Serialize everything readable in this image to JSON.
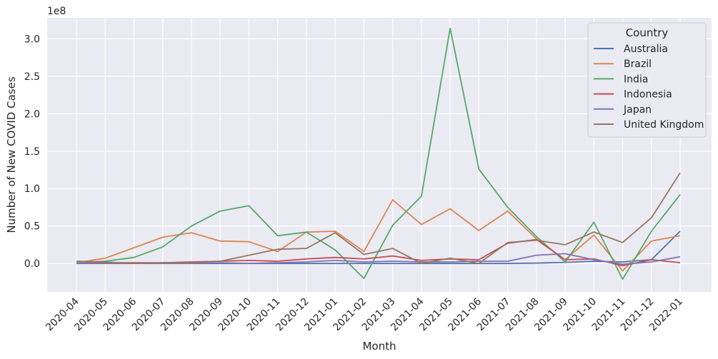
{
  "chart_data": {
    "type": "line",
    "xlabel": "Month",
    "ylabel": "Number of New COVID Cases",
    "y_scale_label": "1e8",
    "ylim": [
      -0.38,
      3.28
    ],
    "y_ticks": [
      0.0,
      0.5,
      1.0,
      1.5,
      2.0,
      2.5,
      3.0
    ],
    "y_tick_labels": [
      "0.0",
      "0.5",
      "1.0",
      "1.5",
      "2.0",
      "2.5",
      "3.0"
    ],
    "grid": true,
    "legend": {
      "title": "Country",
      "placement": "top-right"
    },
    "categories": [
      "2020-04",
      "2020-05",
      "2020-06",
      "2020-07",
      "2020-08",
      "2020-09",
      "2020-10",
      "2020-11",
      "2020-12",
      "2021-01",
      "2021-02",
      "2021-03",
      "2021-04",
      "2021-05",
      "2021-06",
      "2021-07",
      "2021-08",
      "2021-09",
      "2021-10",
      "2021-11",
      "2021-12",
      "2022-01"
    ],
    "series": [
      {
        "name": "Australia",
        "color": "#4c72b0",
        "values": [
          0.005,
          0.0,
          0.0,
          0.0,
          0.0,
          0.0,
          0.0,
          0.0,
          0.0,
          0.0,
          0.0,
          0.0,
          0.0,
          0.0,
          0.0,
          0.0,
          0.005,
          0.015,
          0.03,
          0.02,
          0.05,
          0.43
        ]
      },
      {
        "name": "Brazil",
        "color": "#dd8452",
        "values": [
          0.01,
          0.07,
          0.21,
          0.35,
          0.41,
          0.3,
          0.29,
          0.16,
          0.42,
          0.43,
          0.16,
          0.85,
          0.52,
          0.73,
          0.44,
          0.7,
          0.33,
          0.05,
          0.38,
          -0.1,
          0.3,
          0.37
        ]
      },
      {
        "name": "India",
        "color": "#55a868",
        "values": [
          0.01,
          0.03,
          0.08,
          0.22,
          0.5,
          0.7,
          0.77,
          0.37,
          0.42,
          0.18,
          -0.2,
          0.51,
          0.9,
          3.14,
          1.26,
          0.75,
          0.36,
          0.02,
          0.55,
          -0.21,
          0.43,
          0.92
        ]
      },
      {
        "name": "Indonesia",
        "color": "#c44e52",
        "values": [
          0.0,
          0.01,
          0.01,
          0.01,
          0.02,
          0.03,
          0.04,
          0.03,
          0.06,
          0.08,
          0.06,
          0.1,
          0.04,
          0.06,
          0.05,
          0.27,
          0.32,
          0.05,
          0.06,
          -0.03,
          0.05,
          0.01
        ]
      },
      {
        "name": "Japan",
        "color": "#8172b3",
        "values": [
          0.0,
          0.0,
          0.0,
          0.0,
          0.0,
          0.01,
          0.0,
          0.01,
          0.02,
          0.04,
          0.02,
          0.03,
          0.02,
          0.02,
          0.03,
          0.03,
          0.11,
          0.13,
          0.05,
          -0.01,
          0.02,
          0.09
        ]
      },
      {
        "name": "United Kingdom",
        "color": "#937860",
        "values": [
          0.03,
          0.02,
          0.0,
          0.01,
          0.01,
          0.03,
          0.11,
          0.19,
          0.2,
          0.41,
          0.12,
          0.2,
          0.0,
          0.07,
          0.0,
          0.28,
          0.31,
          0.25,
          0.42,
          0.28,
          0.61,
          1.21
        ]
      }
    ]
  }
}
